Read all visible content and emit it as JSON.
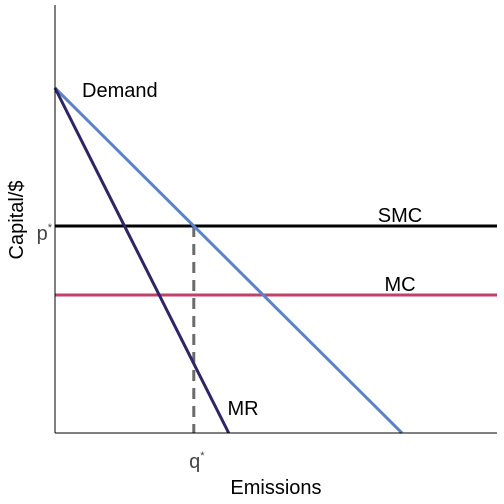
{
  "chart_data": {
    "type": "line",
    "xlabel": "Emissions",
    "ylabel": "Capital/$",
    "x_tick_label": "q",
    "x_tick_superscript": "*",
    "y_tick_label": "p",
    "y_tick_superscript": "*",
    "xlim": [
      0,
      100
    ],
    "ylim": [
      0,
      100
    ],
    "series": [
      {
        "name": "Demand",
        "color": "#5b84c8",
        "x": [
          0,
          78.5
        ],
        "y": [
          100,
          0
        ]
      },
      {
        "name": "MR",
        "color": "#2e2569",
        "x": [
          0,
          39.3
        ],
        "y": [
          100,
          0
        ]
      },
      {
        "name": "SMC",
        "color": "#000000",
        "x": [
          0,
          100
        ],
        "y": [
          60,
          60
        ]
      },
      {
        "name": "MC",
        "color": "#c0426a",
        "x": [
          0,
          100
        ],
        "y": [
          40,
          40
        ]
      }
    ],
    "guide": {
      "color": "#6b6b6b",
      "x": 31.4,
      "y_from": 0,
      "y_to": 60
    }
  }
}
